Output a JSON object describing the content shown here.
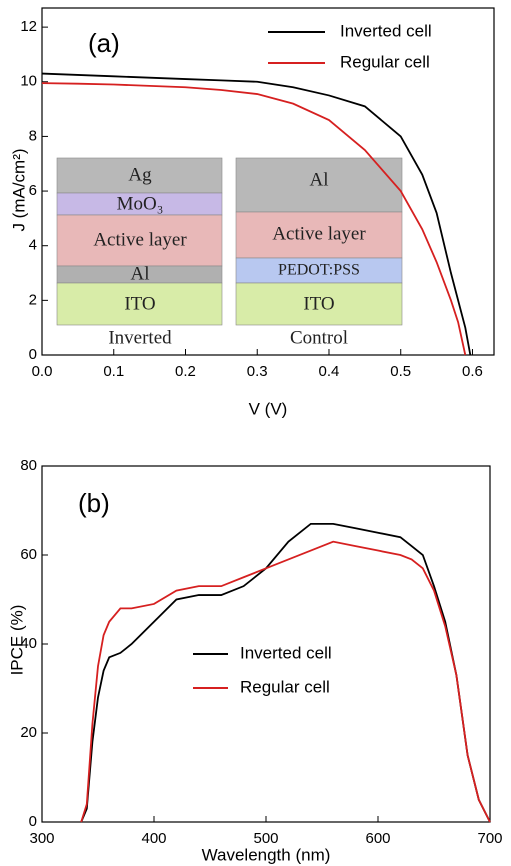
{
  "chart_data": [
    {
      "type": "line",
      "panel_label": "(a)",
      "x_label": "V (V)",
      "y_label": "J (mA/cm²)",
      "x": [
        0,
        0.05,
        0.1,
        0.15,
        0.2,
        0.25,
        0.3,
        0.35,
        0.4,
        0.45,
        0.5,
        0.53,
        0.55,
        0.57,
        0.58,
        0.59,
        0.597
      ],
      "series": [
        {
          "name": "Inverted cell",
          "color": "#000000",
          "values": [
            10.3,
            10.25,
            10.2,
            10.15,
            10.1,
            10.05,
            10.0,
            9.8,
            9.5,
            9.1,
            8.0,
            6.6,
            5.2,
            3.0,
            2.0,
            1.0,
            0
          ]
        },
        {
          "name": "Regular cell",
          "color": "#d62020",
          "values": [
            9.95,
            9.93,
            9.9,
            9.85,
            9.8,
            9.7,
            9.55,
            9.2,
            8.6,
            7.5,
            6.0,
            4.6,
            3.4,
            2.0,
            1.2,
            0,
            null
          ]
        }
      ],
      "xlim": [
        0,
        0.63
      ],
      "ylim": [
        0,
        12.7
      ],
      "xticks": [
        {
          "value": 0,
          "label": "0.0"
        },
        0.1,
        0.2,
        0.3,
        0.4,
        0.5,
        0.6
      ],
      "yticks": [
        0,
        2,
        4,
        6,
        8,
        10,
        12
      ],
      "inset": {
        "inverted": {
          "layers": [
            "Ag",
            "MoO₃",
            "Active layer",
            "Al",
            "ITO"
          ],
          "label": "Inverted"
        },
        "control": {
          "layers": [
            "Al",
            "Active layer",
            "PEDOT:PSS",
            "ITO"
          ],
          "label": "Control"
        }
      }
    },
    {
      "type": "line",
      "panel_label": "(b)",
      "x_label": "Wavelength (nm)",
      "y_label": "IPCE (%)",
      "x": [
        335,
        340,
        345,
        350,
        355,
        360,
        370,
        380,
        400,
        420,
        440,
        460,
        480,
        500,
        520,
        540,
        560,
        580,
        600,
        620,
        630,
        640,
        650,
        660,
        670,
        680,
        690,
        700
      ],
      "series": [
        {
          "name": "Inverted cell",
          "color": "#000000",
          "values": [
            0,
            3,
            18,
            28,
            34,
            37,
            38,
            40,
            45,
            50,
            51,
            51,
            53,
            57,
            63,
            67,
            67,
            66,
            65,
            64,
            62,
            60,
            53,
            45,
            33,
            15,
            5,
            0
          ]
        },
        {
          "name": "Regular cell",
          "color": "#d62020",
          "values": [
            0,
            4,
            22,
            35,
            42,
            45,
            48,
            48,
            49,
            52,
            53,
            53,
            55,
            57,
            59,
            61,
            63,
            62,
            61,
            60,
            59,
            57,
            52,
            44,
            33,
            15,
            5,
            0
          ]
        }
      ],
      "xlim": [
        300,
        700
      ],
      "ylim": [
        0,
        80
      ],
      "xticks": [
        300,
        400,
        500,
        600,
        700
      ],
      "yticks": [
        0,
        20,
        40,
        60,
        80
      ]
    }
  ]
}
